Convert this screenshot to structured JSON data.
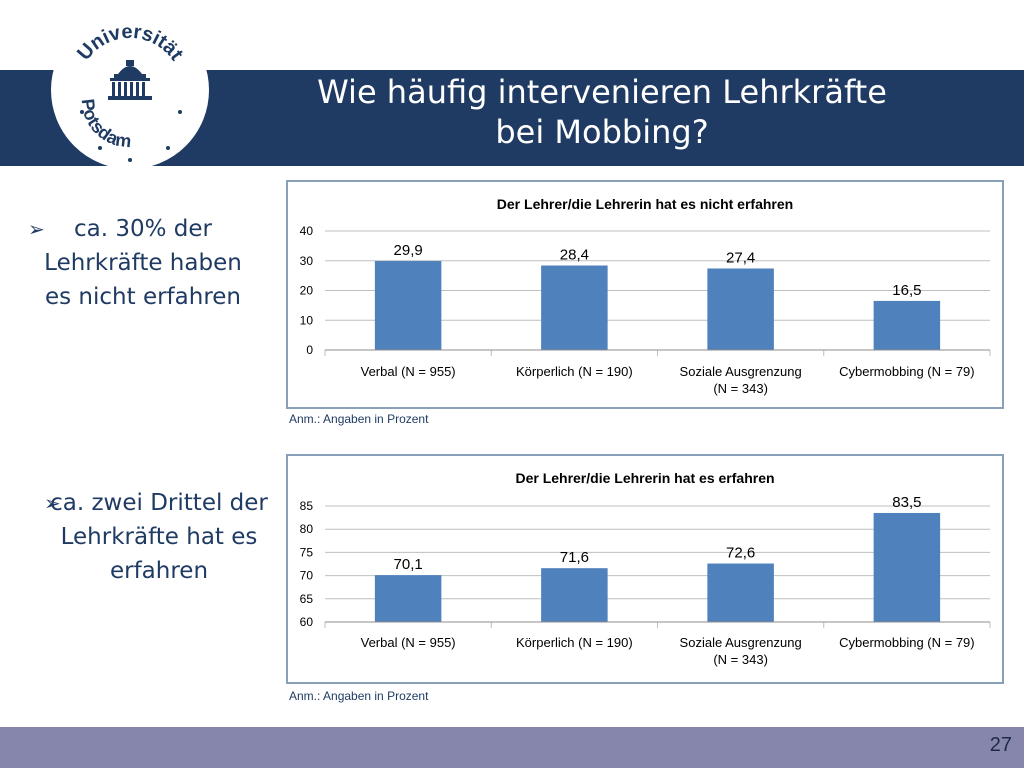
{
  "header": {
    "title_line1": "Wie häufig intervenieren Lehrkräfte",
    "title_line2": "bei Mobbing?",
    "color": "#1f3b63"
  },
  "logo": {
    "top_text": "Universität",
    "bottom_text": "Potsdam"
  },
  "bullets": [
    {
      "icon": "arrow-bullet-icon",
      "text": "ca. 30% der Lehrkräfte haben es nicht erfahren"
    },
    {
      "icon": "arrow-bullet-icon",
      "text": "ca. zwei Drittel der Lehrkräfte hat es erfahren"
    }
  ],
  "chart_data": [
    {
      "type": "bar",
      "title": "Der Lehrer/die Lehrerin hat es nicht erfahren",
      "categories": [
        [
          "Verbal (N = 955)"
        ],
        [
          "Körperlich (N = 190)"
        ],
        [
          "Soziale Ausgrenzung",
          "(N = 343)"
        ],
        [
          "Cybermobbing (N = 79)"
        ]
      ],
      "values": [
        29.9,
        28.4,
        27.4,
        16.5
      ],
      "value_labels": [
        "29,9",
        "28,4",
        "27,4",
        "16,5"
      ],
      "ylim": [
        0,
        40
      ],
      "yticks": [
        0,
        10,
        20,
        30,
        40
      ],
      "grid": true,
      "bar_color": "#4f81bd",
      "note": "Anm.:  Angaben in Prozent"
    },
    {
      "type": "bar",
      "title": "Der Lehrer/die Lehrerin hat es erfahren",
      "categories": [
        [
          "Verbal (N = 955)"
        ],
        [
          "Körperlich (N = 190)"
        ],
        [
          "Soziale Ausgrenzung",
          "(N = 343)"
        ],
        [
          "Cybermobbing (N = 79)"
        ]
      ],
      "values": [
        70.1,
        71.6,
        72.6,
        83.5
      ],
      "value_labels": [
        "70,1",
        "71,6",
        "72,6",
        "83,5"
      ],
      "ylim": [
        60,
        85
      ],
      "yticks": [
        60,
        65,
        70,
        75,
        80,
        85
      ],
      "grid": true,
      "bar_color": "#4f81bd",
      "note": "Anm.:  Angaben in Prozent"
    }
  ],
  "footer": {
    "page_number": "27",
    "color": "#8686ad"
  }
}
